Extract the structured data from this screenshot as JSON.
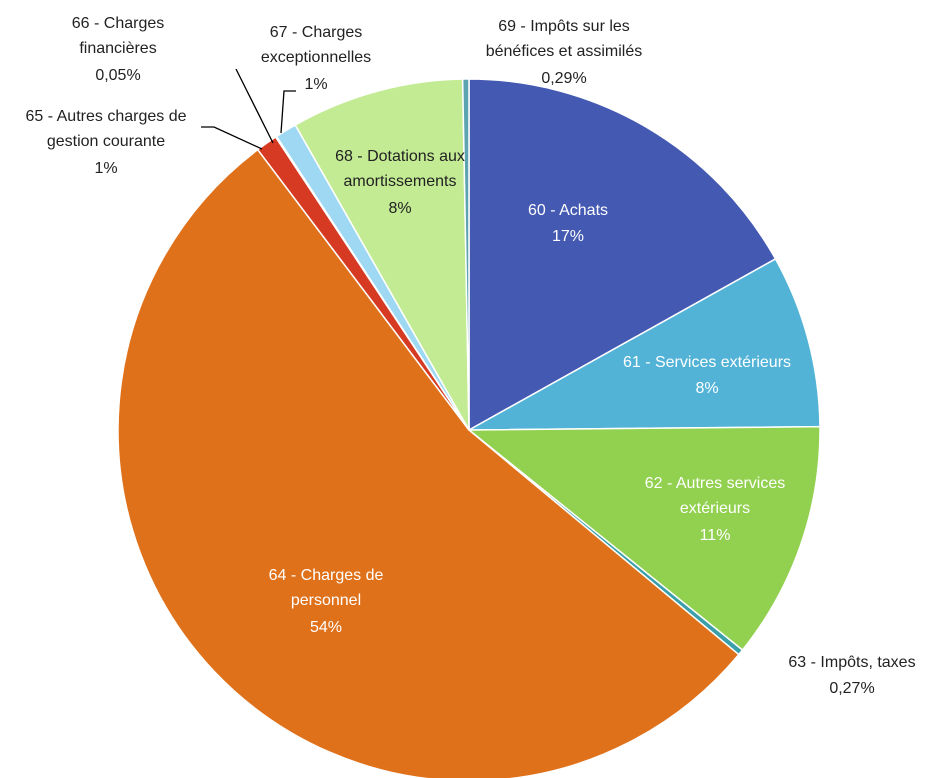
{
  "chart_data": {
    "type": "pie",
    "categories": [
      "60 - Achats",
      "61 - Services extérieurs",
      "62 - Autres services extérieurs",
      "63 - Impôts, taxes",
      "64 - Charges de personnel",
      "65 - Autres charges de gestion courante",
      "66 - Charges financières",
      "67 - Charges exceptionnelles",
      "68 - Dotations aux amortissements",
      "69 - Impôts sur les bénéfices et assimilés"
    ],
    "values": [
      17,
      8,
      11,
      0.27,
      54,
      1,
      0.05,
      1,
      8,
      0.29
    ],
    "value_labels": [
      "17%",
      "8%",
      "11%",
      "0,27%",
      "54%",
      "1%",
      "0,05%",
      "1%",
      "8%",
      "0,29%"
    ],
    "colors": [
      "#4459b1",
      "#52b3d7",
      "#92d050",
      "#3a9fa8",
      "#e0711b",
      "#d63a22",
      "#444444",
      "#9fd8f2",
      "#c3eb94",
      "#5ba4b0"
    ]
  }
}
